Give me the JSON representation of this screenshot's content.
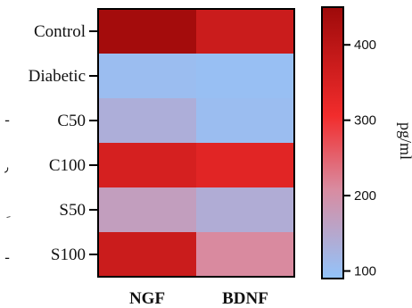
{
  "chart_data": {
    "type": "heatmap",
    "rows": [
      "Control",
      "Diabetic",
      "C50",
      "C100",
      "S50",
      "S100"
    ],
    "columns": [
      "NGF",
      "BDNF"
    ],
    "values": [
      [
        440,
        375
      ],
      [
        105,
        100
      ],
      [
        135,
        105
      ],
      [
        355,
        335
      ],
      [
        170,
        140
      ],
      [
        375,
        210
      ]
    ],
    "colorbar": {
      "label": "pg/ml",
      "range": [
        90,
        450
      ],
      "ticks": [
        100,
        200,
        300,
        400
      ],
      "tick_labels": [
        "100",
        "200",
        "300",
        "400"
      ]
    },
    "colors": {
      "low": "#92c4fb",
      "mid": "#d98ba0",
      "high_mid": "#f22c2c",
      "high": "#9e0a0a"
    },
    "title": "",
    "xlabel": "",
    "ylabel": ""
  },
  "edge_glyphs": [
    "٫",
    "ِ",
    "ـ",
    "ـ"
  ]
}
